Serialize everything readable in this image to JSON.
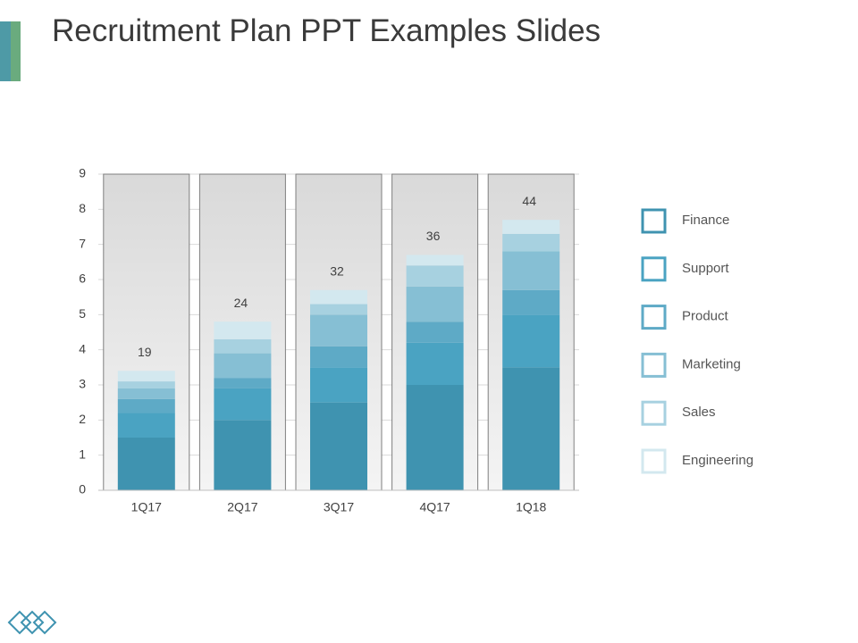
{
  "chart_data": {
    "type": "stacked_bar",
    "title": "Recruitment Plan PPT Examples Slides",
    "categories": [
      "1Q17",
      "2Q17",
      "3Q17",
      "4Q17",
      "1Q18"
    ],
    "series": [
      {
        "name": "Finance",
        "color": "#3f93b0",
        "values": [
          1.5,
          2.0,
          2.5,
          3.0,
          3.5
        ]
      },
      {
        "name": "Support",
        "color": "#4aa3c2",
        "values": [
          0.7,
          0.9,
          1.0,
          1.2,
          1.5
        ]
      },
      {
        "name": "Product",
        "color": "#5eaac6",
        "values": [
          0.4,
          0.3,
          0.6,
          0.6,
          0.7
        ]
      },
      {
        "name": "Marketing",
        "color": "#86bfd4",
        "values": [
          0.3,
          0.7,
          0.9,
          1.0,
          1.1
        ]
      },
      {
        "name": "Sales",
        "color": "#a7d1e0",
        "values": [
          0.2,
          0.4,
          0.3,
          0.6,
          0.5
        ]
      },
      {
        "name": "Engineering",
        "color": "#d3e8ef",
        "values": [
          0.3,
          0.5,
          0.4,
          0.3,
          0.4
        ]
      }
    ],
    "annotations": [
      19,
      24,
      32,
      36,
      44
    ],
    "ylim": [
      0,
      9
    ],
    "yticks": [
      0,
      1,
      2,
      3,
      4,
      5,
      6,
      7,
      8,
      9
    ],
    "grid": true,
    "legend": "right"
  }
}
